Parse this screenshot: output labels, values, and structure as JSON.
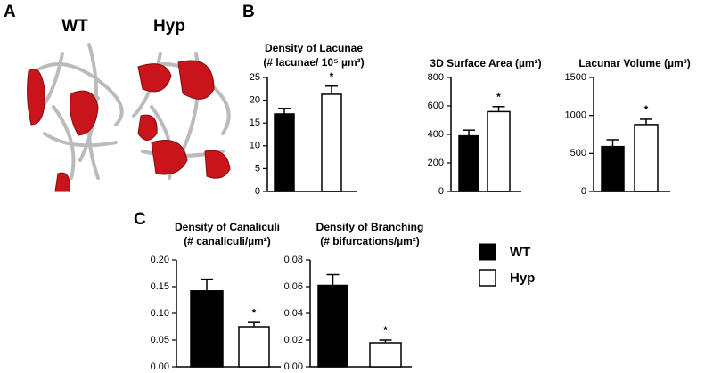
{
  "panels": {
    "a": "A",
    "b": "B",
    "c": "C"
  },
  "image_labels": [
    "WT",
    "Hyp"
  ],
  "legend": {
    "entries": [
      {
        "name": "WT",
        "color": "#000000"
      },
      {
        "name": "Hyp",
        "color": "#ffffff"
      }
    ]
  },
  "chart_data": [
    {
      "type": "bar",
      "title": "Density of Lacunae",
      "subtitle": "(# lacunae/ 10⁵ µm³)",
      "values": [
        17,
        21.3
      ],
      "errors": [
        1.2,
        1.8
      ],
      "annotation": "*",
      "ylim": [
        0,
        25
      ],
      "yticks": [
        0,
        5,
        10,
        15,
        20,
        25
      ]
    },
    {
      "type": "bar",
      "title": "3D Surface Area (µm²)",
      "values": [
        390,
        560
      ],
      "errors": [
        40,
        35
      ],
      "annotation": "*",
      "ylim": [
        0,
        800
      ],
      "yticks": [
        0,
        200,
        400,
        600,
        800
      ]
    },
    {
      "type": "bar",
      "title": "Lacunar Volume (µm³)",
      "values": [
        590,
        880
      ],
      "errors": [
        90,
        70
      ],
      "annotation": "*",
      "ylim": [
        0,
        1500
      ],
      "yticks": [
        0,
        500,
        1000,
        1500
      ]
    },
    {
      "type": "bar",
      "title": "Density of Canaliculi",
      "subtitle": "(# canaliculi/µm²)",
      "values": [
        0.142,
        0.075
      ],
      "errors": [
        0.022,
        0.008
      ],
      "annotation": "*",
      "ylim": [
        0,
        0.2
      ],
      "yticks": [
        {
          "value": 0,
          "label": "0.00"
        },
        {
          "value": 0.05,
          "label": "0.05"
        },
        {
          "value": 0.1,
          "label": "0.10"
        },
        {
          "value": 0.15,
          "label": "0.15"
        },
        {
          "value": 0.2,
          "label": "0.20"
        }
      ]
    },
    {
      "type": "bar",
      "title": "Density of Branching",
      "subtitle": "(# bifurcations/µm²)",
      "values": [
        0.061,
        0.018
      ],
      "errors": [
        0.008,
        0.002
      ],
      "annotation": "*",
      "ylim": [
        0,
        0.08
      ],
      "yticks": [
        {
          "value": 0,
          "label": "0.00"
        },
        {
          "value": 0.02,
          "label": "0.02"
        },
        {
          "value": 0.04,
          "label": "0.04"
        },
        {
          "value": 0.06,
          "label": "0.06"
        },
        {
          "value": 0.08,
          "label": "0.08"
        }
      ]
    }
  ]
}
